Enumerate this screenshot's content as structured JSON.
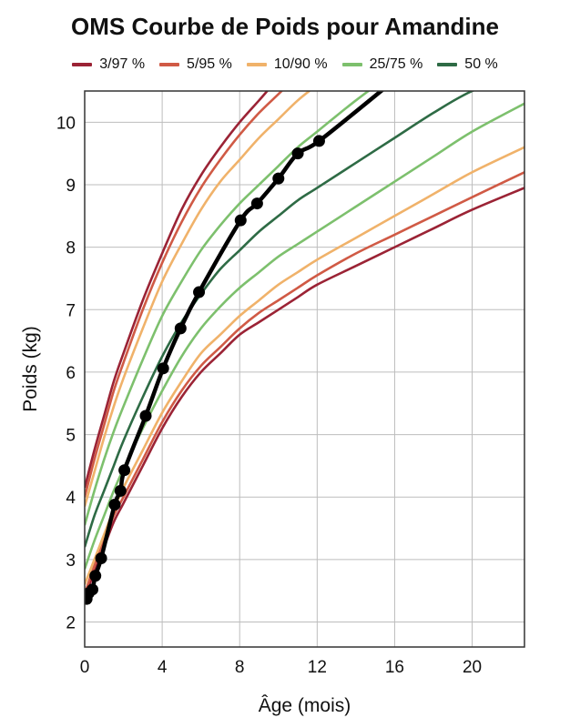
{
  "chart_data": {
    "type": "line",
    "title": "OMS Courbe de Poids pour Amandine",
    "xlabel": "Âge (mois)",
    "ylabel": "Poids (kg)",
    "xlim": [
      0,
      22.7
    ],
    "ylim": [
      1.6,
      10.5
    ],
    "xticks": [
      0,
      4,
      8,
      12,
      16,
      20
    ],
    "yticks": [
      2,
      3,
      4,
      5,
      6,
      7,
      8,
      9,
      10
    ],
    "grid": true,
    "legend_position": "top",
    "legend": [
      {
        "label": "3/97 %",
        "color": "#9b2335"
      },
      {
        "label": "5/95 %",
        "color": "#d05a45"
      },
      {
        "label": "10/90 %",
        "color": "#f0b26a"
      },
      {
        "label": "25/75 %",
        "color": "#7dc06d"
      },
      {
        "label": "50 %",
        "color": "#2e6b45"
      }
    ],
    "reference_x": [
      0,
      0.5,
      1,
      1.5,
      2,
      3,
      4,
      5,
      6,
      7,
      8,
      9,
      10,
      11,
      12,
      14,
      16,
      18,
      20,
      22.7
    ],
    "reference_curves": [
      {
        "group": "3/97 %",
        "color": "#9b2335",
        "y": [
          2.4,
          2.8,
          3.2,
          3.6,
          3.9,
          4.5,
          5.1,
          5.6,
          6.0,
          6.3,
          6.6,
          6.8,
          7.0,
          7.2,
          7.4,
          7.7,
          8.0,
          8.3,
          8.6,
          8.95
        ]
      },
      {
        "group": "5/95 %",
        "color": "#d05a45",
        "y": [
          2.45,
          2.9,
          3.3,
          3.7,
          4.0,
          4.6,
          5.2,
          5.7,
          6.1,
          6.4,
          6.7,
          6.95,
          7.15,
          7.35,
          7.55,
          7.9,
          8.2,
          8.5,
          8.8,
          9.2
        ]
      },
      {
        "group": "10/90 %",
        "color": "#f0b26a",
        "y": [
          2.6,
          3.0,
          3.4,
          3.8,
          4.15,
          4.75,
          5.35,
          5.85,
          6.3,
          6.6,
          6.9,
          7.15,
          7.4,
          7.6,
          7.8,
          8.15,
          8.5,
          8.85,
          9.2,
          9.6
        ]
      },
      {
        "group": "25/75 %",
        "color": "#7dc06d",
        "y": [
          2.85,
          3.3,
          3.7,
          4.1,
          4.45,
          5.1,
          5.7,
          6.25,
          6.7,
          7.05,
          7.35,
          7.6,
          7.85,
          8.05,
          8.25,
          8.65,
          9.05,
          9.45,
          9.85,
          10.3
        ]
      },
      {
        "group": "50 %",
        "color": "#2e6b45",
        "y": [
          3.2,
          3.7,
          4.1,
          4.5,
          4.9,
          5.6,
          6.25,
          6.8,
          7.25,
          7.65,
          7.95,
          8.25,
          8.5,
          8.75,
          8.95,
          9.35,
          9.75,
          10.15,
          10.5,
          10.8
        ]
      },
      {
        "group": "25/75 %",
        "color": "#7dc06d",
        "y": [
          3.55,
          4.1,
          4.6,
          5.05,
          5.45,
          6.2,
          6.9,
          7.45,
          7.95,
          8.35,
          8.7,
          9.0,
          9.3,
          9.6,
          9.85,
          10.35,
          10.8,
          11.2,
          11.6,
          12.0
        ]
      },
      {
        "group": "10/90 %",
        "color": "#f0b26a",
        "y": [
          3.85,
          4.4,
          4.95,
          5.45,
          5.9,
          6.7,
          7.45,
          8.05,
          8.6,
          9.05,
          9.4,
          9.75,
          10.05,
          10.35,
          10.6,
          11.1,
          11.5,
          11.9,
          12.3,
          12.7
        ]
      },
      {
        "group": "5/95 %",
        "color": "#d05a45",
        "y": [
          4.0,
          4.6,
          5.15,
          5.7,
          6.15,
          7.0,
          7.75,
          8.4,
          8.95,
          9.4,
          9.8,
          10.15,
          10.45,
          10.75,
          11.0,
          11.5,
          11.95,
          12.35,
          12.75,
          13.15
        ]
      },
      {
        "group": "3/97 %",
        "color": "#9b2335",
        "y": [
          4.15,
          4.75,
          5.3,
          5.85,
          6.3,
          7.15,
          7.9,
          8.6,
          9.15,
          9.6,
          10.0,
          10.35,
          10.7,
          11.0,
          11.25,
          11.75,
          12.2,
          12.6,
          13.0,
          13.4
        ]
      }
    ],
    "child_series": {
      "color": "#000000",
      "x": [
        0.1,
        0.2,
        0.4,
        0.55,
        0.85,
        1.55,
        1.85,
        2.05,
        3.15,
        4.05,
        4.95,
        5.9,
        8.05,
        8.9,
        10.0,
        11.0,
        12.1
      ],
      "y": [
        2.37,
        2.46,
        2.52,
        2.74,
        3.02,
        3.88,
        4.1,
        4.43,
        5.3,
        6.06,
        6.7,
        7.28,
        8.43,
        8.7,
        9.1,
        9.5,
        9.7
      ],
      "line_x": [
        0.1,
        0.2,
        0.4,
        0.55,
        0.85,
        1.55,
        1.85,
        2.05,
        3.15,
        4.05,
        4.95,
        5.9,
        8.05,
        8.9,
        10.0,
        11.0,
        12.1,
        15.5
      ],
      "line_y": [
        2.37,
        2.46,
        2.52,
        2.74,
        3.02,
        3.88,
        4.1,
        4.43,
        5.3,
        6.06,
        6.7,
        7.28,
        8.43,
        8.7,
        9.1,
        9.5,
        9.7,
        10.55
      ]
    }
  }
}
